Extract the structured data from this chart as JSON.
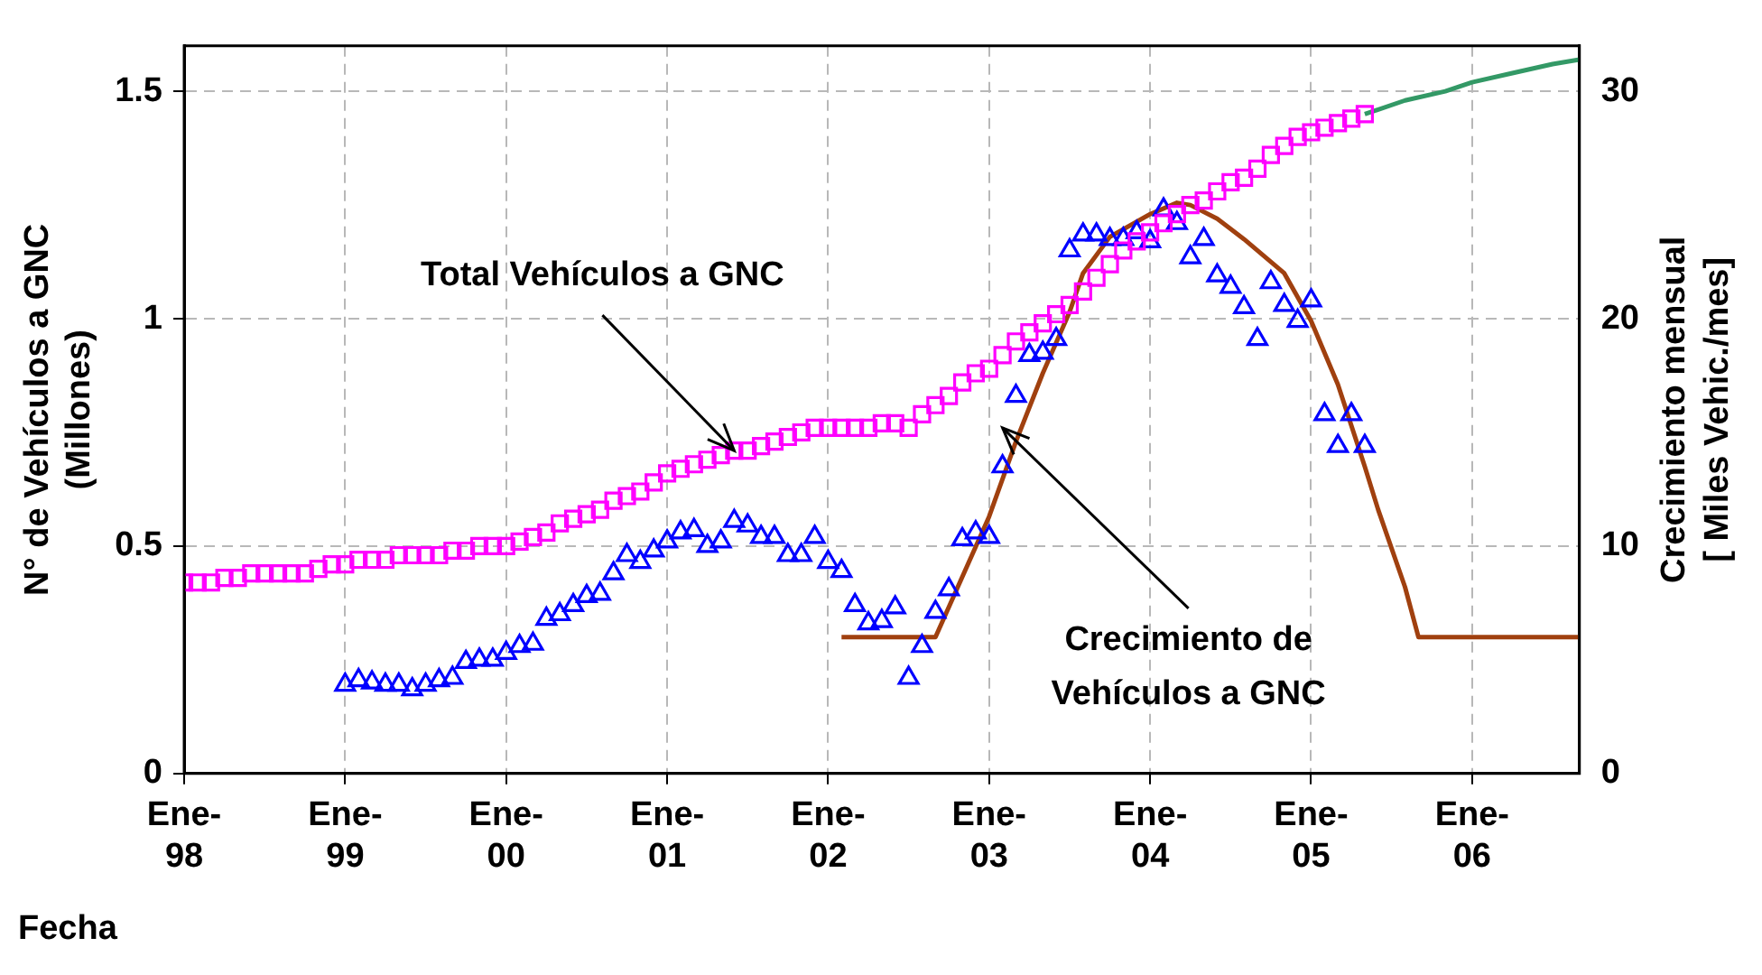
{
  "chart_data": {
    "type": "scatter",
    "xlabel": "Fecha",
    "ylabel": "N° de Vehículos a GNC\n(Millones)",
    "y2label": "Crecimiento mensual\n[ Miles Vehic./mes]",
    "xlim": [
      "1998-01",
      "2006-09"
    ],
    "xticks": [
      {
        "value": "1998-01",
        "label": "Ene-98"
      },
      {
        "value": "1999-01",
        "label": "Ene-99"
      },
      {
        "value": "2000-01",
        "label": "Ene-00"
      },
      {
        "value": "2001-01",
        "label": "Ene-01"
      },
      {
        "value": "2002-01",
        "label": "Ene-02"
      },
      {
        "value": "2003-01",
        "label": "Ene-03"
      },
      {
        "value": "2004-01",
        "label": "Ene-04"
      },
      {
        "value": "2005-01",
        "label": "Ene-05"
      },
      {
        "value": "2006-01",
        "label": "Ene-06"
      }
    ],
    "ylim": [
      0,
      1.6
    ],
    "yticks": [
      0,
      0.5,
      1,
      1.5
    ],
    "y2lim": [
      0,
      32
    ],
    "y2ticks": [
      0,
      10,
      20,
      30
    ],
    "grid": true,
    "annotations": [
      {
        "text": "Total Vehículos a GNC",
        "x": "2001-06",
        "y": 0.71
      },
      {
        "text": "Crecimiento de\nVehículos a GNC",
        "x": "2003-02",
        "y": 0.76
      }
    ],
    "series": [
      {
        "marker": "square",
        "color": "#ff00ff",
        "x": [
          "1998-01",
          "1998-02",
          "1998-03",
          "1998-04",
          "1998-05",
          "1998-06",
          "1998-07",
          "1998-08",
          "1998-09",
          "1998-10",
          "1998-11",
          "1998-12",
          "1999-01",
          "1999-02",
          "1999-03",
          "1999-04",
          "1999-05",
          "1999-06",
          "1999-07",
          "1999-08",
          "1999-09",
          "1999-10",
          "1999-11",
          "1999-12",
          "2000-01",
          "2000-02",
          "2000-03",
          "2000-04",
          "2000-05",
          "2000-06",
          "2000-07",
          "2000-08",
          "2000-09",
          "2000-10",
          "2000-11",
          "2000-12",
          "2001-01",
          "2001-02",
          "2001-03",
          "2001-04",
          "2001-05",
          "2001-06",
          "2001-07",
          "2001-08",
          "2001-09",
          "2001-10",
          "2001-11",
          "2001-12",
          "2002-01",
          "2002-02",
          "2002-03",
          "2002-04",
          "2002-05",
          "2002-06",
          "2002-07",
          "2002-08",
          "2002-09",
          "2002-10",
          "2002-11",
          "2002-12",
          "2003-01",
          "2003-02",
          "2003-03",
          "2003-04",
          "2003-05",
          "2003-06",
          "2003-07",
          "2003-08",
          "2003-09",
          "2003-10",
          "2003-11",
          "2003-12",
          "2004-01",
          "2004-02",
          "2004-03",
          "2004-04",
          "2004-05",
          "2004-06",
          "2004-07",
          "2004-08",
          "2004-09",
          "2004-10",
          "2004-11",
          "2004-12",
          "2005-01",
          "2005-02",
          "2005-03",
          "2005-04",
          "2005-05"
        ],
        "values": [
          0.42,
          0.42,
          0.42,
          0.43,
          0.43,
          0.44,
          0.44,
          0.44,
          0.44,
          0.44,
          0.45,
          0.46,
          0.46,
          0.47,
          0.47,
          0.47,
          0.48,
          0.48,
          0.48,
          0.48,
          0.49,
          0.49,
          0.5,
          0.5,
          0.5,
          0.51,
          0.52,
          0.53,
          0.55,
          0.56,
          0.57,
          0.58,
          0.6,
          0.61,
          0.62,
          0.64,
          0.66,
          0.67,
          0.68,
          0.69,
          0.7,
          0.71,
          0.71,
          0.72,
          0.73,
          0.74,
          0.75,
          0.76,
          0.76,
          0.76,
          0.76,
          0.76,
          0.77,
          0.77,
          0.76,
          0.79,
          0.81,
          0.83,
          0.86,
          0.88,
          0.89,
          0.92,
          0.95,
          0.97,
          0.99,
          1.01,
          1.03,
          1.06,
          1.09,
          1.12,
          1.15,
          1.17,
          1.19,
          1.21,
          1.23,
          1.25,
          1.26,
          1.28,
          1.3,
          1.31,
          1.33,
          1.36,
          1.38,
          1.4,
          1.41,
          1.42,
          1.43,
          1.44,
          1.45
        ]
      },
      {
        "type": "line",
        "marker": "none",
        "color": "#339966",
        "x": [
          "2005-05",
          "2005-08",
          "2005-11",
          "2006-01",
          "2006-04",
          "2006-07",
          "2006-09"
        ],
        "values": [
          1.45,
          1.48,
          1.5,
          1.52,
          1.54,
          1.56,
          1.57
        ]
      },
      {
        "axis": "y2",
        "marker": "triangle",
        "color": "#0000ff",
        "x": [
          "1999-01",
          "1999-02",
          "1999-03",
          "1999-04",
          "1999-05",
          "1999-06",
          "1999-07",
          "1999-08",
          "1999-09",
          "1999-10",
          "1999-11",
          "1999-12",
          "2000-01",
          "2000-02",
          "2000-03",
          "2000-04",
          "2000-05",
          "2000-06",
          "2000-07",
          "2000-08",
          "2000-09",
          "2000-10",
          "2000-11",
          "2000-12",
          "2001-01",
          "2001-02",
          "2001-03",
          "2001-04",
          "2001-05",
          "2001-06",
          "2001-07",
          "2001-08",
          "2001-09",
          "2001-10",
          "2001-11",
          "2001-12",
          "2002-01",
          "2002-02",
          "2002-03",
          "2002-04",
          "2002-05",
          "2002-06",
          "2002-07",
          "2002-08",
          "2002-09",
          "2002-10",
          "2002-11",
          "2002-12",
          "2003-01",
          "2003-02",
          "2003-03",
          "2003-04",
          "2003-05",
          "2003-06",
          "2003-07",
          "2003-08",
          "2003-09",
          "2003-10",
          "2003-11",
          "2003-12",
          "2004-01",
          "2004-02",
          "2004-03",
          "2004-04",
          "2004-05",
          "2004-06",
          "2004-07",
          "2004-08",
          "2004-09",
          "2004-10",
          "2004-11",
          "2004-12",
          "2005-01",
          "2005-02",
          "2005-03",
          "2005-04",
          "2005-05"
        ],
        "values": [
          3.9,
          4.1,
          4.0,
          3.9,
          3.9,
          3.7,
          3.9,
          4.1,
          4.2,
          4.9,
          5.0,
          5.0,
          5.3,
          5.6,
          5.7,
          6.8,
          7.0,
          7.4,
          7.8,
          7.9,
          8.8,
          9.6,
          9.3,
          9.8,
          10.2,
          10.6,
          10.7,
          10.0,
          10.2,
          11.1,
          10.9,
          10.4,
          10.4,
          9.6,
          9.6,
          10.4,
          9.3,
          8.9,
          7.4,
          6.6,
          6.7,
          7.3,
          4.2,
          5.6,
          7.1,
          8.1,
          10.3,
          10.6,
          10.4,
          13.5,
          16.6,
          18.4,
          18.5,
          19.1,
          23.0,
          23.7,
          23.7,
          23.5,
          23.5,
          23.8,
          23.4,
          24.8,
          24.2,
          22.7,
          23.5,
          21.9,
          21.4,
          20.5,
          19.1,
          21.6,
          20.6,
          19.9,
          20.8,
          15.8,
          14.4,
          15.8,
          14.4
        ]
      },
      {
        "type": "line",
        "axis": "y2",
        "marker": "none",
        "color": "#a0400f",
        "x": [
          "2002-02",
          "2002-09",
          "2003-01",
          "2003-03",
          "2003-05",
          "2003-07",
          "2003-08",
          "2003-10",
          "2004-01",
          "2004-03",
          "2004-04",
          "2004-06",
          "2004-08",
          "2004-11",
          "2005-01",
          "2005-03",
          "2005-05",
          "2005-06",
          "2005-08",
          "2005-09",
          "2006-09"
        ],
        "values": [
          6,
          6,
          11.3,
          14.6,
          17.6,
          20.3,
          22.0,
          23.6,
          24.6,
          25.1,
          25.0,
          24.4,
          23.5,
          22.0,
          19.9,
          17.1,
          13.5,
          11.6,
          8.2,
          6,
          6
        ]
      }
    ]
  }
}
